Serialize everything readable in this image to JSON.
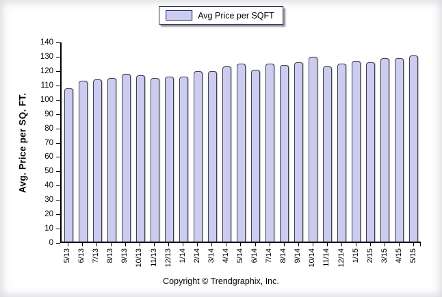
{
  "page": {
    "footer": "Copyright © Trendgraphix, Inc."
  },
  "legend": {
    "label": "Avg Price per SQFT",
    "swatch_fill": "#ccccf0",
    "swatch_border": "#22226b"
  },
  "colors": {
    "bar_fill": "#ccccf0",
    "bar_border": "#3f3f48",
    "axis": "#000000",
    "text": "#000000"
  },
  "chart_data": {
    "type": "bar",
    "title": "",
    "xlabel": "",
    "ylabel": "Avg. Price per SQ. FT.",
    "ylim": [
      0,
      140
    ],
    "ytick_step": 10,
    "yticks": [
      0,
      10,
      20,
      30,
      40,
      50,
      60,
      70,
      80,
      90,
      100,
      110,
      120,
      130,
      140
    ],
    "grid": false,
    "legend_entries": [
      "Avg Price per SQFT"
    ],
    "legend_position": "top-center",
    "categories": [
      "5/13",
      "6/13",
      "7/13",
      "8/13",
      "9/13",
      "10/13",
      "11/13",
      "12/13",
      "1/14",
      "2/14",
      "3/14",
      "4/14",
      "5/14",
      "6/14",
      "7/14",
      "8/14",
      "9/14",
      "10/14",
      "11/14",
      "12/14",
      "1/15",
      "2/15",
      "3/15",
      "4/15",
      "5/15"
    ],
    "values": [
      108,
      113,
      114,
      115,
      118,
      117,
      115,
      116,
      116,
      120,
      120,
      123,
      125,
      121,
      125,
      124,
      126,
      130,
      123,
      125,
      127,
      126,
      129,
      129,
      131
    ]
  }
}
